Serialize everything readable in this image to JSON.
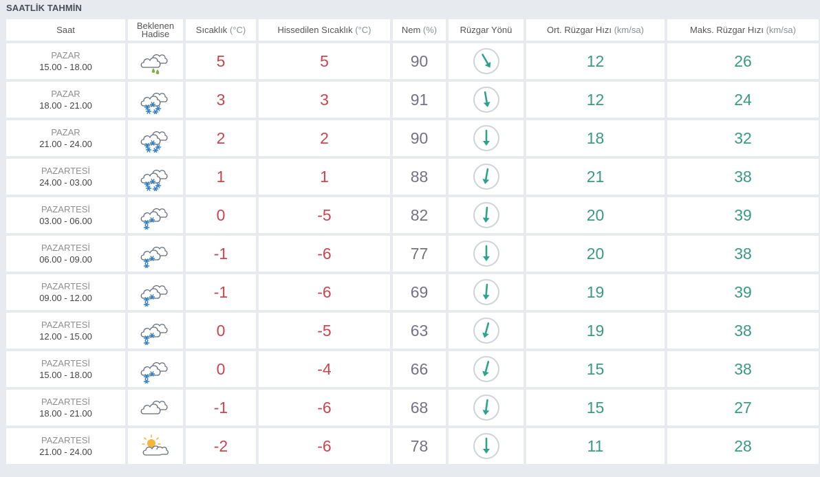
{
  "page": {
    "title": "SAATLİK TAHMİN"
  },
  "headers": {
    "saat": "Saat",
    "hadise_line1": "Beklenen",
    "hadise_line2": "Hadise",
    "sicaklik": "Sıcaklık",
    "sicaklik_unit": "(°C)",
    "hissedilen": "Hissedilen Sıcaklık",
    "hissedilen_unit": "(°C)",
    "nem": "Nem",
    "nem_unit": "(%)",
    "ruzgar_yonu": "Rüzgar Yönü",
    "ort_ruzgar": "Ort. Rüzgar Hızı",
    "ort_ruzgar_unit": "(km/sa)",
    "maks_ruzgar": "Maks. Rüzgar Hızı",
    "maks_ruzgar_unit": "(km/sa)"
  },
  "colors": {
    "temperature": "#c9454f",
    "humidity": "#767086",
    "wind": "#3a9a82",
    "arrow": "#2ea38b",
    "background": "#e7ebef"
  },
  "rows": [
    {
      "day": "PAZAR",
      "hours": "15.00 - 18.00",
      "icon": "rain-cloud-icon",
      "temp": "5",
      "feels": "5",
      "humidity": "90",
      "wind_dir_deg": 330,
      "avg_wind": "12",
      "max_wind": "26"
    },
    {
      "day": "PAZAR",
      "hours": "18.00 - 21.00",
      "icon": "snow-cloud-icon",
      "temp": "3",
      "feels": "3",
      "humidity": "91",
      "wind_dir_deg": 350,
      "avg_wind": "12",
      "max_wind": "24"
    },
    {
      "day": "PAZAR",
      "hours": "21.00 - 24.00",
      "icon": "snow-cloud-icon",
      "temp": "2",
      "feels": "2",
      "humidity": "90",
      "wind_dir_deg": 0,
      "avg_wind": "18",
      "max_wind": "32"
    },
    {
      "day": "PAZARTESİ",
      "hours": "24.00 - 03.00",
      "icon": "snow-cloud-icon",
      "temp": "1",
      "feels": "1",
      "humidity": "88",
      "wind_dir_deg": 10,
      "avg_wind": "21",
      "max_wind": "38"
    },
    {
      "day": "PAZARTESİ",
      "hours": "03.00 - 06.00",
      "icon": "light-snow-cloud-icon",
      "temp": "0",
      "feels": "-5",
      "humidity": "82",
      "wind_dir_deg": 5,
      "avg_wind": "20",
      "max_wind": "39"
    },
    {
      "day": "PAZARTESİ",
      "hours": "06.00 - 09.00",
      "icon": "light-snow-cloud-icon",
      "temp": "-1",
      "feels": "-6",
      "humidity": "77",
      "wind_dir_deg": 0,
      "avg_wind": "20",
      "max_wind": "38"
    },
    {
      "day": "PAZARTESİ",
      "hours": "09.00 - 12.00",
      "icon": "light-snow-cloud-icon",
      "temp": "-1",
      "feels": "-6",
      "humidity": "69",
      "wind_dir_deg": 5,
      "avg_wind": "19",
      "max_wind": "39"
    },
    {
      "day": "PAZARTESİ",
      "hours": "12.00 - 15.00",
      "icon": "light-snow-cloud-icon",
      "temp": "0",
      "feels": "-5",
      "humidity": "63",
      "wind_dir_deg": 15,
      "avg_wind": "19",
      "max_wind": "38"
    },
    {
      "day": "PAZARTESİ",
      "hours": "15.00 - 18.00",
      "icon": "light-snow-cloud-icon",
      "temp": "0",
      "feels": "-4",
      "humidity": "66",
      "wind_dir_deg": 15,
      "avg_wind": "15",
      "max_wind": "38"
    },
    {
      "day": "PAZARTESİ",
      "hours": "18.00 - 21.00",
      "icon": "cloud-icon",
      "temp": "-1",
      "feels": "-6",
      "humidity": "68",
      "wind_dir_deg": 8,
      "avg_wind": "15",
      "max_wind": "27"
    },
    {
      "day": "PAZARTESİ",
      "hours": "21.00 - 24.00",
      "icon": "partly-cloudy-icon",
      "temp": "-2",
      "feels": "-6",
      "humidity": "78",
      "wind_dir_deg": 0,
      "avg_wind": "11",
      "max_wind": "28"
    }
  ]
}
